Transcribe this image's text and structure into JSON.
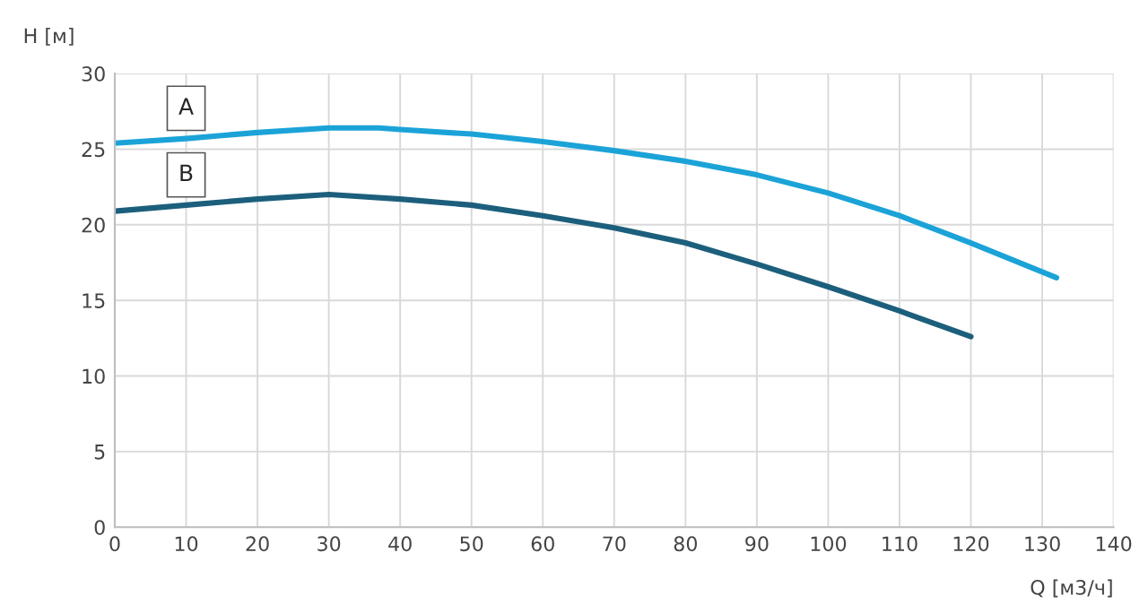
{
  "chart_data": {
    "type": "line",
    "xlabel": "Q [м3/ч]",
    "ylabel": "H [м]",
    "series": [
      {
        "name": "A",
        "color": "#1ba3d8",
        "x": [
          0,
          10,
          20,
          30,
          37,
          40,
          50,
          60,
          70,
          80,
          90,
          100,
          110,
          120,
          132
        ],
        "values": [
          25.4,
          25.7,
          26.1,
          26.4,
          26.4,
          26.3,
          26.0,
          25.5,
          24.9,
          24.2,
          23.3,
          22.1,
          20.6,
          18.8,
          16.5
        ]
      },
      {
        "name": "B",
        "color": "#1c5f7c",
        "x": [
          0,
          10,
          20,
          30,
          40,
          50,
          60,
          70,
          80,
          90,
          100,
          110,
          120
        ],
        "values": [
          20.9,
          21.3,
          21.7,
          22.0,
          21.7,
          21.3,
          20.6,
          19.8,
          18.8,
          17.4,
          15.9,
          14.3,
          12.6
        ]
      }
    ],
    "xlim": [
      0,
      140
    ],
    "xticks": [
      0,
      10,
      20,
      30,
      40,
      50,
      60,
      70,
      80,
      90,
      100,
      110,
      120,
      130,
      140
    ],
    "ylim": [
      0,
      30
    ],
    "yticks": [
      0,
      5,
      10,
      15,
      20,
      25,
      30
    ],
    "grid": true,
    "legend": false,
    "marker": "none",
    "line_style": "solid"
  }
}
